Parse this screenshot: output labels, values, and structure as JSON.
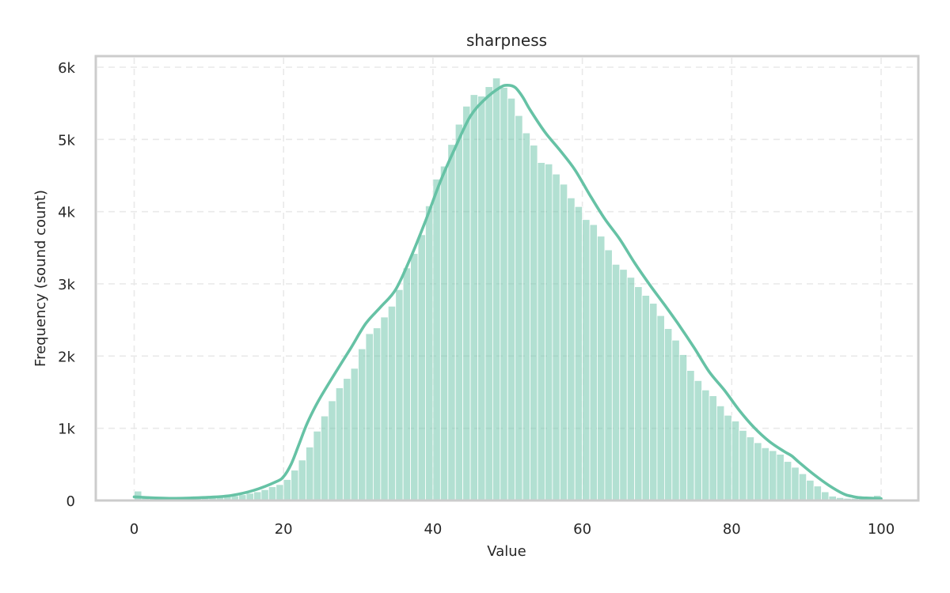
{
  "chart_data": {
    "type": "bar",
    "subtype": "histogram",
    "title": "sharpness",
    "xlabel": "Value",
    "ylabel": "Frequency (sound count)",
    "xlim": [
      -5,
      105
    ],
    "ylim": [
      0,
      6000
    ],
    "x_ticks": [
      0,
      20,
      40,
      60,
      80,
      100
    ],
    "y_ticks": [
      0,
      1000,
      2000,
      3000,
      4000,
      5000,
      6000
    ],
    "y_tick_labels": [
      "0",
      "1k",
      "2k",
      "3k",
      "4k",
      "5k",
      "6k"
    ],
    "grid": true,
    "bin_width": 1,
    "bin_start": 0,
    "color": "#66c2a5",
    "values": [
      130,
      60,
      40,
      30,
      30,
      30,
      30,
      35,
      35,
      40,
      40,
      45,
      55,
      65,
      80,
      100,
      120,
      150,
      190,
      220,
      290,
      420,
      560,
      740,
      960,
      1170,
      1380,
      1560,
      1690,
      1830,
      2100,
      2310,
      2390,
      2540,
      2690,
      2920,
      3220,
      3420,
      3680,
      4080,
      4450,
      4630,
      4930,
      5210,
      5460,
      5620,
      5600,
      5730,
      5850,
      5720,
      5570,
      5330,
      5090,
      4920,
      4680,
      4660,
      4520,
      4380,
      4190,
      4070,
      3890,
      3820,
      3660,
      3470,
      3270,
      3200,
      3090,
      2960,
      2840,
      2730,
      2560,
      2380,
      2220,
      2020,
      1800,
      1660,
      1530,
      1450,
      1310,
      1180,
      1100,
      970,
      880,
      800,
      730,
      690,
      640,
      540,
      460,
      370,
      280,
      200,
      120,
      60,
      40,
      30,
      30,
      30,
      25,
      70
    ],
    "kde": {
      "x": [
        0,
        5,
        10,
        13,
        16,
        19,
        20,
        21,
        22,
        23,
        24,
        25,
        27,
        29,
        31,
        33,
        35,
        37,
        39,
        41,
        43,
        45,
        47,
        49,
        50,
        51,
        52,
        53,
        55,
        57,
        59,
        61,
        63,
        65,
        67,
        69,
        71,
        73,
        75,
        77,
        79,
        81,
        83,
        85,
        87,
        88,
        89,
        91,
        93,
        95,
        96,
        97,
        98,
        100
      ],
      "y": [
        50,
        30,
        45,
        70,
        140,
        260,
        330,
        500,
        760,
        1030,
        1250,
        1440,
        1780,
        2110,
        2450,
        2680,
        2920,
        3360,
        3870,
        4420,
        4890,
        5320,
        5560,
        5720,
        5750,
        5720,
        5590,
        5410,
        5100,
        4850,
        4580,
        4230,
        3900,
        3620,
        3290,
        2990,
        2710,
        2420,
        2110,
        1780,
        1530,
        1250,
        1010,
        820,
        680,
        620,
        530,
        360,
        210,
        90,
        60,
        40,
        35,
        25
      ]
    }
  }
}
